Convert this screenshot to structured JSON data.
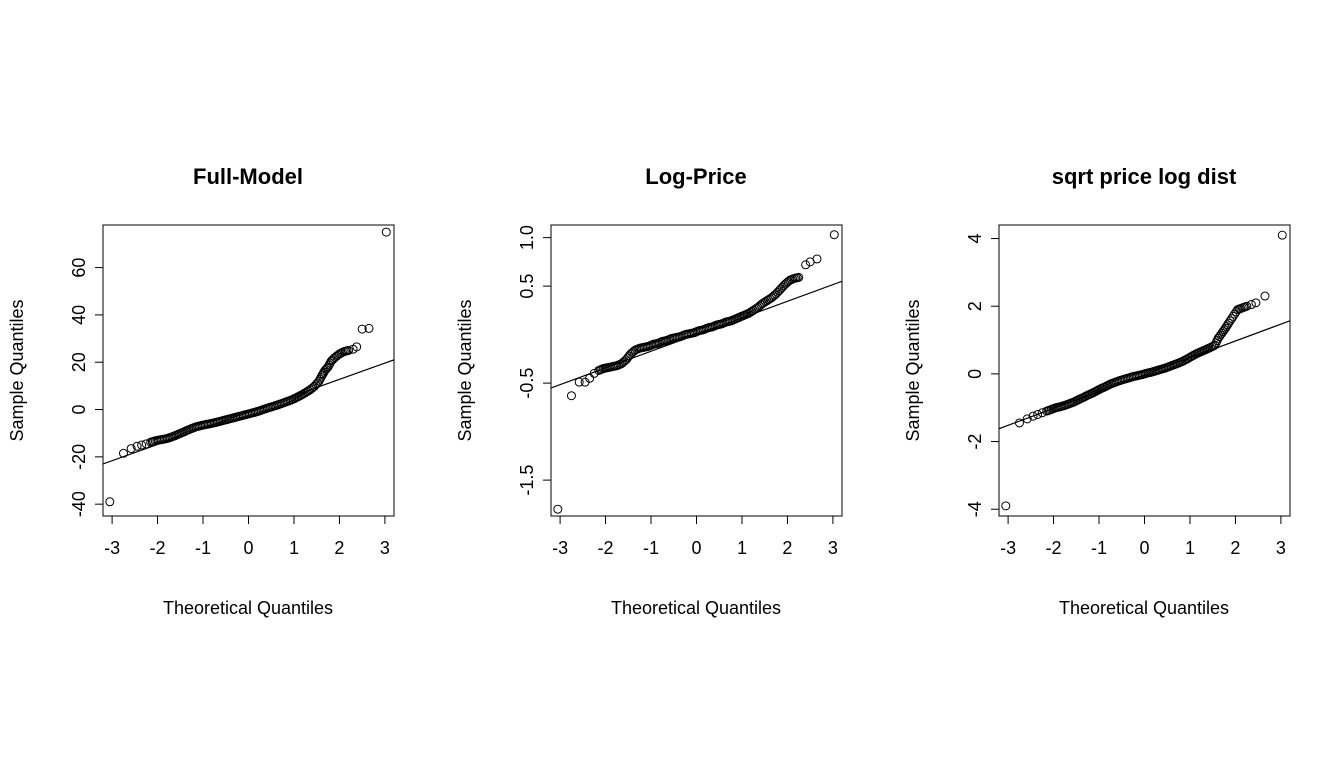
{
  "chart_data": [
    {
      "type": "scatter",
      "title": "Full-Model",
      "xlabel": "Theoretical Quantiles",
      "ylabel": "Sample Quantiles",
      "xlim": [
        -3.2,
        3.2
      ],
      "ylim": [
        -45,
        78
      ],
      "xticks": [
        -3,
        -2,
        -1,
        0,
        1,
        2,
        3
      ],
      "xtick_labels": [
        "-3",
        "-2",
        "-1",
        "0",
        "1",
        "2",
        "3"
      ],
      "yticks": [
        -40,
        -20,
        0,
        20,
        40,
        60
      ],
      "ytick_labels": [
        "-40",
        "-20",
        "0",
        "20",
        "40",
        "60"
      ],
      "grid": false,
      "reference_line": [
        [
          -3.2,
          -23
        ],
        [
          3.2,
          21
        ]
      ],
      "points": [
        [
          -3.05,
          -39
        ],
        [
          -2.75,
          -18.5
        ],
        [
          -2.58,
          -16.5
        ],
        [
          -2.45,
          -15.5
        ],
        [
          -2.35,
          -15
        ],
        [
          -2.25,
          -14.5
        ],
        [
          -2.15,
          -13.8
        ],
        [
          -2.05,
          -13.2
        ],
        [
          -1.95,
          -12.8
        ],
        [
          -1.85,
          -12.5
        ],
        [
          -1.75,
          -12
        ],
        [
          -1.65,
          -11.3
        ],
        [
          -1.55,
          -10.5
        ],
        [
          -1.45,
          -9.7
        ],
        [
          -1.35,
          -8.8
        ],
        [
          -1.25,
          -8
        ],
        [
          -1.15,
          -7.3
        ],
        [
          -1.05,
          -6.8
        ],
        [
          -0.95,
          -6.4
        ],
        [
          -0.85,
          -6
        ],
        [
          -0.75,
          -5.6
        ],
        [
          -0.65,
          -5.1
        ],
        [
          -0.55,
          -4.6
        ],
        [
          -0.45,
          -4.1
        ],
        [
          -0.35,
          -3.6
        ],
        [
          -0.25,
          -3.1
        ],
        [
          -0.15,
          -2.6
        ],
        [
          -0.05,
          -2.1
        ],
        [
          0.05,
          -1.6
        ],
        [
          0.15,
          -1.1
        ],
        [
          0.25,
          -0.5
        ],
        [
          0.35,
          0.2
        ],
        [
          0.45,
          0.8
        ],
        [
          0.55,
          1.4
        ],
        [
          0.65,
          2
        ],
        [
          0.75,
          2.7
        ],
        [
          0.85,
          3.4
        ],
        [
          0.95,
          4.1
        ],
        [
          1.05,
          5
        ],
        [
          1.15,
          6
        ],
        [
          1.25,
          7.1
        ],
        [
          1.35,
          8.3
        ],
        [
          1.45,
          9.8
        ],
        [
          1.55,
          12
        ],
        [
          1.62,
          14.5
        ],
        [
          1.68,
          16.5
        ],
        [
          1.75,
          18
        ],
        [
          1.82,
          20.5
        ],
        [
          1.9,
          22
        ],
        [
          2.0,
          23.5
        ],
        [
          2.1,
          24.5
        ],
        [
          2.2,
          25
        ],
        [
          2.3,
          25.5
        ],
        [
          2.38,
          26.5
        ],
        [
          2.5,
          34
        ],
        [
          2.65,
          34.3
        ],
        [
          3.03,
          75
        ]
      ]
    },
    {
      "type": "scatter",
      "title": "Log-Price",
      "xlabel": "Theoretical Quantiles",
      "ylabel": "Sample Quantiles",
      "xlim": [
        -3.2,
        3.2
      ],
      "ylim": [
        -1.87,
        1.13
      ],
      "xticks": [
        -3,
        -2,
        -1,
        0,
        1,
        2,
        3
      ],
      "xtick_labels": [
        "-3",
        "-2",
        "-1",
        "0",
        "1",
        "2",
        "3"
      ],
      "yticks": [
        -1.5,
        -0.5,
        0.5,
        1.0
      ],
      "ytick_labels": [
        "-1.5",
        "-0.5",
        "0.5",
        "1.0"
      ],
      "grid": false,
      "reference_line": [
        [
          -3.2,
          -0.55
        ],
        [
          3.2,
          0.55
        ]
      ],
      "points": [
        [
          -3.05,
          -1.8
        ],
        [
          -2.75,
          -0.63
        ],
        [
          -2.58,
          -0.49
        ],
        [
          -2.45,
          -0.49
        ],
        [
          -2.35,
          -0.45
        ],
        [
          -2.25,
          -0.4
        ],
        [
          -2.15,
          -0.37
        ],
        [
          -2.05,
          -0.35
        ],
        [
          -1.95,
          -0.34
        ],
        [
          -1.85,
          -0.33
        ],
        [
          -1.75,
          -0.32
        ],
        [
          -1.65,
          -0.3
        ],
        [
          -1.55,
          -0.26
        ],
        [
          -1.45,
          -0.2
        ],
        [
          -1.35,
          -0.16
        ],
        [
          -1.25,
          -0.14
        ],
        [
          -1.15,
          -0.13
        ],
        [
          -1.05,
          -0.12
        ],
        [
          -0.95,
          -0.1
        ],
        [
          -0.85,
          -0.09
        ],
        [
          -0.75,
          -0.07
        ],
        [
          -0.65,
          -0.06
        ],
        [
          -0.55,
          -0.04
        ],
        [
          -0.45,
          -0.03
        ],
        [
          -0.35,
          -0.02
        ],
        [
          -0.25,
          0
        ],
        [
          -0.15,
          0.01
        ],
        [
          -0.05,
          0.02
        ],
        [
          0.05,
          0.04
        ],
        [
          0.15,
          0.05
        ],
        [
          0.25,
          0.07
        ],
        [
          0.35,
          0.08
        ],
        [
          0.45,
          0.1
        ],
        [
          0.55,
          0.11
        ],
        [
          0.65,
          0.13
        ],
        [
          0.75,
          0.14
        ],
        [
          0.85,
          0.16
        ],
        [
          0.95,
          0.18
        ],
        [
          1.05,
          0.2
        ],
        [
          1.15,
          0.22
        ],
        [
          1.25,
          0.25
        ],
        [
          1.35,
          0.28
        ],
        [
          1.45,
          0.32
        ],
        [
          1.55,
          0.35
        ],
        [
          1.65,
          0.38
        ],
        [
          1.75,
          0.42
        ],
        [
          1.85,
          0.47
        ],
        [
          1.95,
          0.52
        ],
        [
          2.05,
          0.56
        ],
        [
          2.15,
          0.58
        ],
        [
          2.25,
          0.59
        ],
        [
          2.4,
          0.72
        ],
        [
          2.5,
          0.75
        ],
        [
          2.65,
          0.78
        ],
        [
          3.03,
          1.03
        ]
      ]
    },
    {
      "type": "scatter",
      "title": "sqrt price log dist",
      "xlabel": "Theoretical Quantiles",
      "ylabel": "Sample Quantiles",
      "xlim": [
        -3.2,
        3.2
      ],
      "ylim": [
        -4.2,
        4.4
      ],
      "xticks": [
        -3,
        -2,
        -1,
        0,
        1,
        2,
        3
      ],
      "xtick_labels": [
        "-3",
        "-2",
        "-1",
        "0",
        "1",
        "2",
        "3"
      ],
      "yticks": [
        -4,
        -2,
        0,
        2,
        4
      ],
      "ytick_labels": [
        "-4",
        "-2",
        "0",
        "2",
        "4"
      ],
      "grid": false,
      "reference_line": [
        [
          -3.2,
          -1.62
        ],
        [
          3.2,
          1.57
        ]
      ],
      "points": [
        [
          -3.05,
          -3.9
        ],
        [
          -2.75,
          -1.45
        ],
        [
          -2.58,
          -1.33
        ],
        [
          -2.45,
          -1.25
        ],
        [
          -2.35,
          -1.2
        ],
        [
          -2.25,
          -1.15
        ],
        [
          -2.15,
          -1.1
        ],
        [
          -2.05,
          -1.05
        ],
        [
          -1.95,
          -1.0
        ],
        [
          -1.85,
          -0.97
        ],
        [
          -1.75,
          -0.93
        ],
        [
          -1.65,
          -0.88
        ],
        [
          -1.55,
          -0.83
        ],
        [
          -1.45,
          -0.76
        ],
        [
          -1.35,
          -0.7
        ],
        [
          -1.25,
          -0.63
        ],
        [
          -1.15,
          -0.57
        ],
        [
          -1.05,
          -0.5
        ],
        [
          -0.95,
          -0.43
        ],
        [
          -0.85,
          -0.37
        ],
        [
          -0.75,
          -0.3
        ],
        [
          -0.65,
          -0.25
        ],
        [
          -0.55,
          -0.2
        ],
        [
          -0.45,
          -0.16
        ],
        [
          -0.35,
          -0.12
        ],
        [
          -0.25,
          -0.08
        ],
        [
          -0.15,
          -0.05
        ],
        [
          -0.05,
          -0.02
        ],
        [
          0.05,
          0.02
        ],
        [
          0.15,
          0.05
        ],
        [
          0.25,
          0.09
        ],
        [
          0.35,
          0.13
        ],
        [
          0.45,
          0.17
        ],
        [
          0.55,
          0.22
        ],
        [
          0.65,
          0.27
        ],
        [
          0.75,
          0.32
        ],
        [
          0.85,
          0.38
        ],
        [
          0.95,
          0.45
        ],
        [
          1.05,
          0.53
        ],
        [
          1.15,
          0.6
        ],
        [
          1.25,
          0.66
        ],
        [
          1.35,
          0.72
        ],
        [
          1.45,
          0.78
        ],
        [
          1.55,
          0.85
        ],
        [
          1.62,
          1.05
        ],
        [
          1.7,
          1.2
        ],
        [
          1.78,
          1.35
        ],
        [
          1.85,
          1.5
        ],
        [
          1.95,
          1.7
        ],
        [
          2.05,
          1.9
        ],
        [
          2.15,
          1.95
        ],
        [
          2.25,
          2.0
        ],
        [
          2.35,
          2.05
        ],
        [
          2.45,
          2.1
        ],
        [
          2.65,
          2.3
        ],
        [
          3.03,
          4.1
        ]
      ]
    }
  ]
}
